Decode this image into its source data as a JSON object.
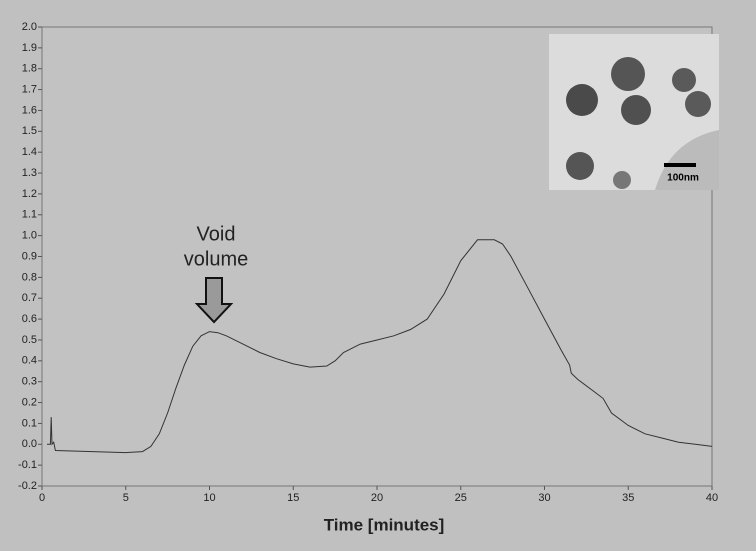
{
  "chart_data": {
    "type": "line",
    "x_label": "Time [minutes]",
    "annotation": [
      "Void",
      "volume"
    ],
    "inset_scale_label": "100nm",
    "x": [
      0.3,
      0.5,
      0.55,
      0.6,
      0.7,
      0.8,
      5,
      6,
      6.5,
      7,
      7.5,
      8,
      8.5,
      9,
      9.5,
      10,
      10.5,
      11,
      12,
      13,
      14,
      15,
      16,
      17,
      17.5,
      18,
      19,
      20,
      21,
      22,
      23,
      24,
      25,
      26,
      27,
      27.5,
      28,
      29,
      30,
      31,
      31.5,
      31.6,
      32,
      33,
      33.5,
      34,
      35,
      36,
      37,
      38,
      39,
      40
    ],
    "series": [
      {
        "color": "#333333",
        "values": [
          0.0,
          0.0,
          0.13,
          0.0,
          0.01,
          -0.03,
          -0.04,
          -0.035,
          -0.01,
          0.05,
          0.15,
          0.27,
          0.38,
          0.47,
          0.52,
          0.54,
          0.535,
          0.52,
          0.48,
          0.44,
          0.41,
          0.385,
          0.37,
          0.375,
          0.4,
          0.44,
          0.48,
          0.5,
          0.52,
          0.55,
          0.6,
          0.72,
          0.88,
          0.98,
          0.98,
          0.96,
          0.9,
          0.75,
          0.6,
          0.45,
          0.38,
          0.34,
          0.31,
          0.25,
          0.22,
          0.15,
          0.09,
          0.05,
          0.03,
          0.01,
          0.0,
          -0.01
        ]
      }
    ],
    "xlim": [
      0,
      40
    ],
    "xticks": [
      0,
      5,
      10,
      15,
      20,
      25,
      30,
      35,
      40
    ],
    "ylim": [
      -0.2,
      2.0
    ],
    "yticks": [
      {
        "value": -0.2,
        "label": "-0.2"
      },
      {
        "value": -0.1,
        "label": "-0.1"
      },
      {
        "value": 0,
        "label": "0.0"
      },
      0.1,
      0.2,
      0.3,
      0.4,
      0.5,
      0.6,
      0.7,
      0.8,
      0.9,
      {
        "value": 1,
        "label": "1.0"
      },
      1.1,
      1.2,
      1.3,
      1.4,
      1.5,
      1.6,
      1.7,
      1.8,
      1.9,
      {
        "value": 2,
        "label": "2.0"
      }
    ],
    "grid": false
  }
}
